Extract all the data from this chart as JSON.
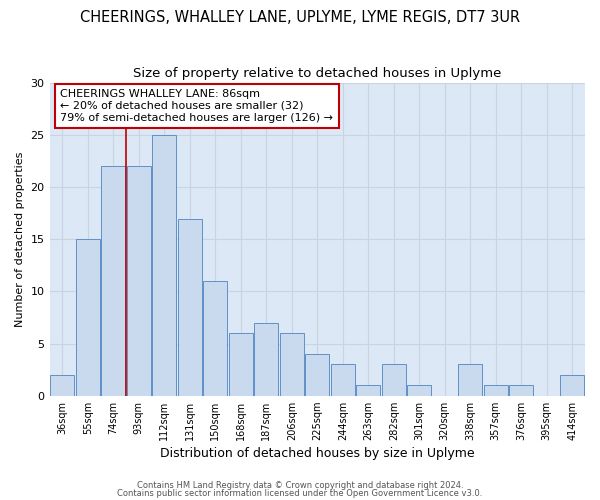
{
  "title": "CHEERINGS, WHALLEY LANE, UPLYME, LYME REGIS, DT7 3UR",
  "subtitle": "Size of property relative to detached houses in Uplyme",
  "xlabel": "Distribution of detached houses by size in Uplyme",
  "ylabel": "Number of detached properties",
  "categories": [
    "36sqm",
    "55sqm",
    "74sqm",
    "93sqm",
    "112sqm",
    "131sqm",
    "150sqm",
    "168sqm",
    "187sqm",
    "206sqm",
    "225sqm",
    "244sqm",
    "263sqm",
    "282sqm",
    "301sqm",
    "320sqm",
    "338sqm",
    "357sqm",
    "376sqm",
    "395sqm",
    "414sqm"
  ],
  "values": [
    2,
    15,
    22,
    22,
    25,
    17,
    11,
    6,
    7,
    6,
    4,
    3,
    1,
    3,
    1,
    0,
    3,
    1,
    1,
    0,
    2
  ],
  "bar_color": "#c9d9ee",
  "bar_edge_color": "#6090c8",
  "vline_x": 2.5,
  "marker_label": "CHEERINGS WHALLEY LANE: 86sqm",
  "annotation_line1": "← 20% of detached houses are smaller (32)",
  "annotation_line2": "79% of semi-detached houses are larger (126) →",
  "vline_color": "#c00000",
  "ylim": [
    0,
    30
  ],
  "yticks": [
    0,
    5,
    10,
    15,
    20,
    25,
    30
  ],
  "footer1": "Contains HM Land Registry data © Crown copyright and database right 2024.",
  "footer2": "Contains public sector information licensed under the Open Government Licence v3.0.",
  "background_color": "#ffffff",
  "plot_bg_color": "#dce8f5",
  "grid_color": "#c8d4e0",
  "annotation_box_edge": "#c00000",
  "title_fontsize": 10.5,
  "subtitle_fontsize": 9.5
}
